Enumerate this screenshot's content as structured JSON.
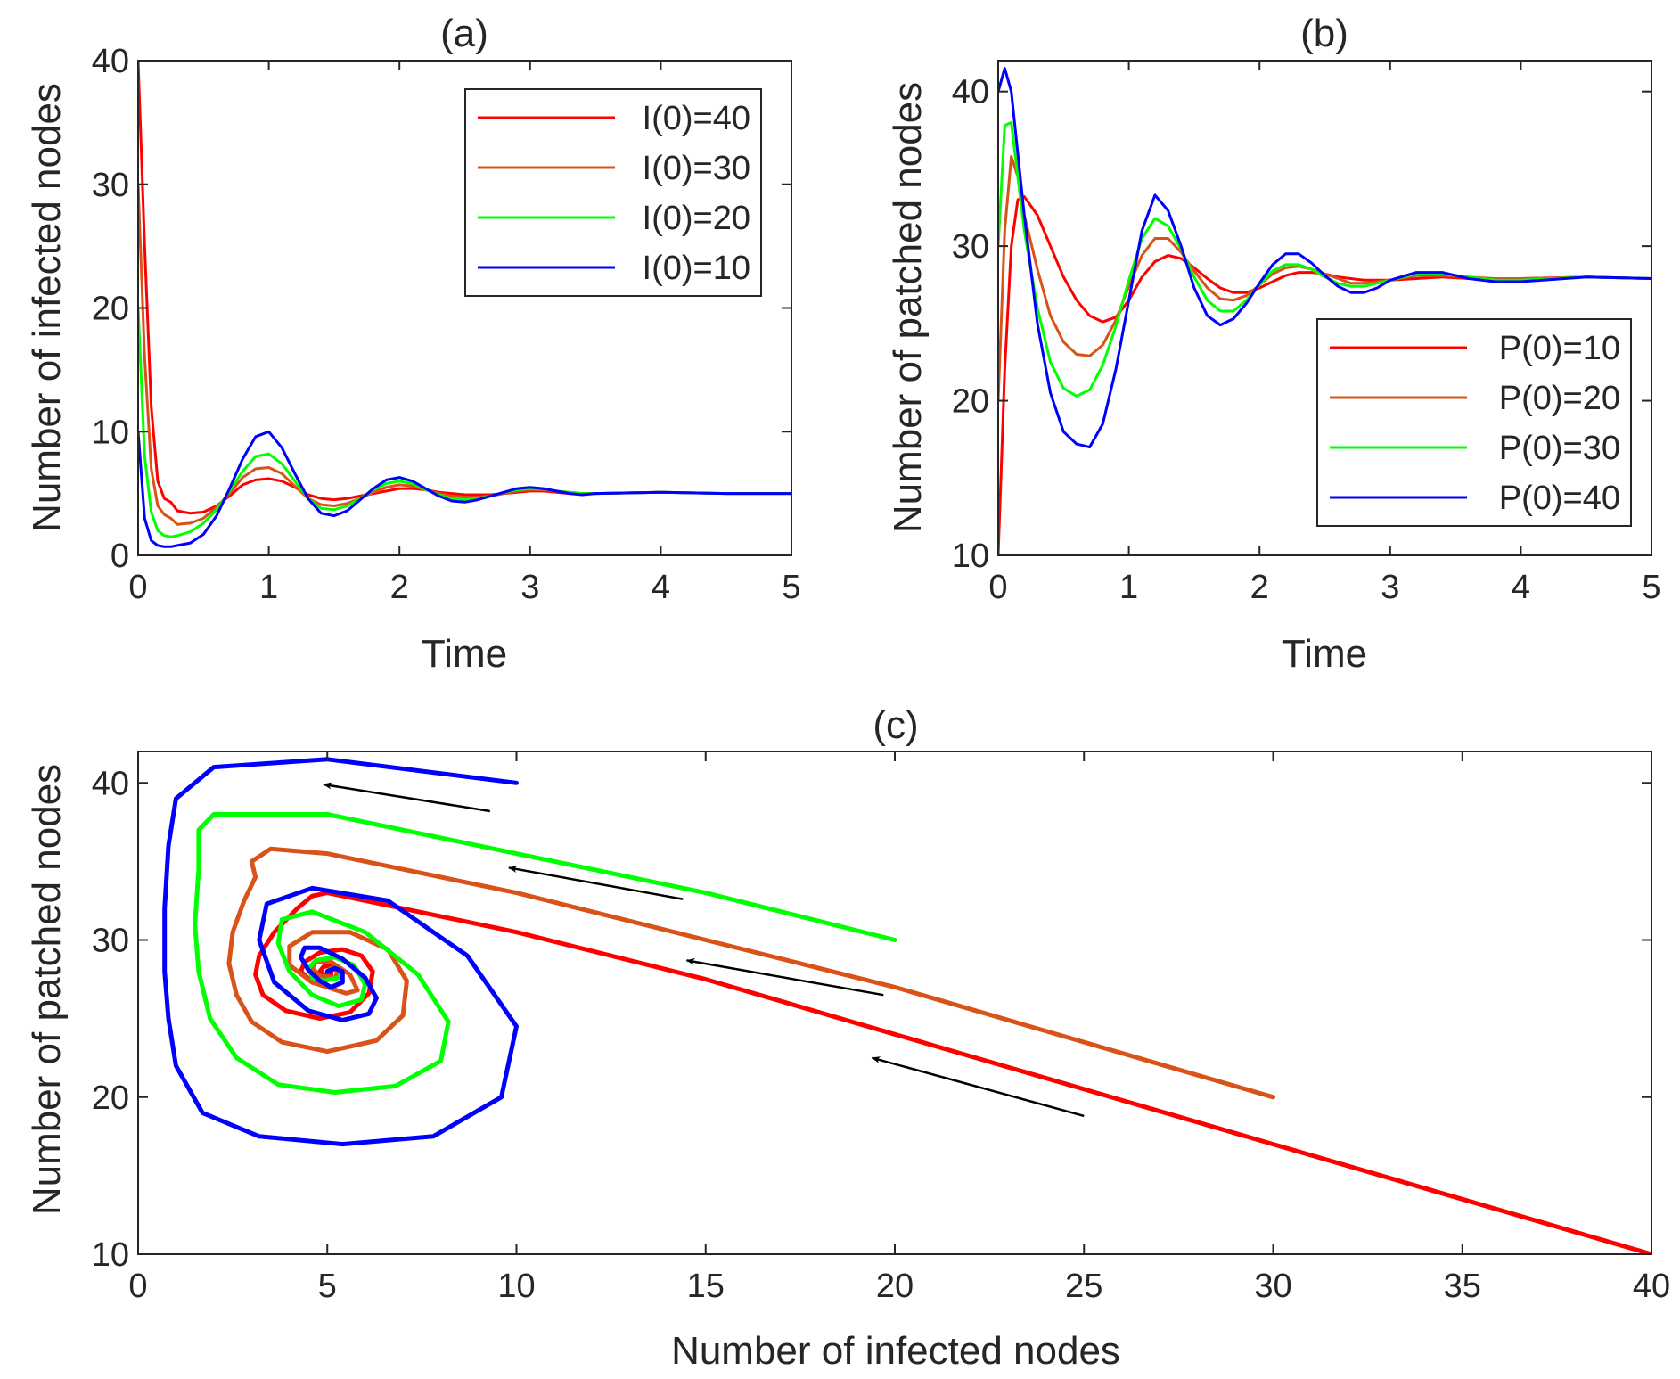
{
  "colors": {
    "c1": "#ff0000",
    "c2": "#d95319",
    "c3": "#00ff00",
    "c4": "#0000ff",
    "arrow": "#000000",
    "axis": "#262626"
  },
  "chart_data": [
    {
      "type": "line",
      "title": "(a)",
      "xlabel": "Time",
      "ylabel": "Number of infected nodes",
      "xlim": [
        0,
        5
      ],
      "ylim": [
        0,
        40
      ],
      "xticks": [
        "0",
        "1",
        "2",
        "3",
        "4",
        "5"
      ],
      "yticks": [
        "0",
        "10",
        "20",
        "30",
        "40"
      ],
      "grid": false,
      "legend_position": "top-right",
      "series": [
        {
          "name": "I(0)=40",
          "x": [
            0,
            0.05,
            0.1,
            0.15,
            0.2,
            0.25,
            0.3,
            0.4,
            0.5,
            0.6,
            0.7,
            0.8,
            0.9,
            1.0,
            1.1,
            1.2,
            1.3,
            1.4,
            1.5,
            1.6,
            1.7,
            1.8,
            1.9,
            2.0,
            2.1,
            2.2,
            2.3,
            2.4,
            2.5,
            2.6,
            2.7,
            2.8,
            2.9,
            3.0,
            3.1,
            3.2,
            3.3,
            3.4,
            3.5,
            4.0,
            4.5,
            5.0
          ],
          "y": [
            40,
            25,
            12,
            6,
            4.6,
            4.3,
            3.6,
            3.4,
            3.5,
            4.0,
            4.8,
            5.7,
            6.1,
            6.2,
            6.0,
            5.5,
            4.9,
            4.6,
            4.5,
            4.6,
            4.8,
            5.0,
            5.2,
            5.4,
            5.4,
            5.3,
            5.1,
            5.0,
            4.9,
            4.9,
            4.9,
            5.0,
            5.1,
            5.2,
            5.2,
            5.1,
            5.0,
            5.0,
            5.0,
            5.1,
            5.0,
            5.0
          ]
        },
        {
          "name": "I(0)=30",
          "x": [
            0,
            0.05,
            0.1,
            0.15,
            0.2,
            0.25,
            0.3,
            0.4,
            0.5,
            0.6,
            0.7,
            0.8,
            0.9,
            1.0,
            1.1,
            1.2,
            1.3,
            1.4,
            1.5,
            1.6,
            1.7,
            1.8,
            1.9,
            2.0,
            2.1,
            2.2,
            2.3,
            2.4,
            2.5,
            2.6,
            2.7,
            2.8,
            2.9,
            3.0,
            3.1,
            3.2,
            3.3,
            3.4,
            3.5,
            4.0,
            4.5,
            5.0
          ],
          "y": [
            30,
            16,
            7,
            4,
            3.3,
            3.0,
            2.5,
            2.6,
            3.0,
            3.9,
            5.0,
            6.3,
            7.0,
            7.1,
            6.6,
            5.6,
            4.6,
            4.1,
            4.0,
            4.2,
            4.6,
            5.1,
            5.5,
            5.7,
            5.6,
            5.3,
            5.0,
            4.8,
            4.7,
            4.7,
            4.8,
            5.0,
            5.2,
            5.3,
            5.3,
            5.2,
            5.1,
            5.0,
            5.0,
            5.1,
            5.0,
            5.0
          ]
        },
        {
          "name": "I(0)=20",
          "x": [
            0,
            0.05,
            0.1,
            0.15,
            0.2,
            0.25,
            0.3,
            0.4,
            0.5,
            0.6,
            0.7,
            0.8,
            0.9,
            1.0,
            1.1,
            1.2,
            1.3,
            1.4,
            1.5,
            1.6,
            1.7,
            1.8,
            1.9,
            2.0,
            2.1,
            2.2,
            2.3,
            2.4,
            2.5,
            2.6,
            2.7,
            2.8,
            2.9,
            3.0,
            3.1,
            3.2,
            3.3,
            3.4,
            3.5,
            4.0,
            4.5,
            5.0
          ],
          "y": [
            20,
            8,
            3.5,
            2.0,
            1.6,
            1.5,
            1.6,
            1.9,
            2.6,
            3.7,
            5.2,
            6.8,
            8.0,
            8.2,
            7.4,
            6.0,
            4.6,
            3.8,
            3.7,
            4.0,
            4.6,
            5.3,
            5.8,
            6.0,
            5.8,
            5.3,
            4.9,
            4.6,
            4.5,
            4.6,
            4.8,
            5.1,
            5.3,
            5.4,
            5.4,
            5.2,
            5.1,
            5.0,
            5.0,
            5.1,
            5.0,
            5.0
          ]
        },
        {
          "name": "I(0)=10",
          "x": [
            0,
            0.05,
            0.1,
            0.15,
            0.2,
            0.25,
            0.3,
            0.4,
            0.5,
            0.6,
            0.7,
            0.8,
            0.9,
            1.0,
            1.1,
            1.2,
            1.3,
            1.4,
            1.5,
            1.6,
            1.7,
            1.8,
            1.9,
            2.0,
            2.1,
            2.2,
            2.3,
            2.4,
            2.5,
            2.6,
            2.7,
            2.8,
            2.9,
            3.0,
            3.1,
            3.2,
            3.3,
            3.4,
            3.5,
            4.0,
            4.5,
            5.0
          ],
          "y": [
            10,
            3.0,
            1.2,
            0.8,
            0.7,
            0.7,
            0.8,
            1.0,
            1.7,
            3.2,
            5.4,
            7.8,
            9.6,
            10.0,
            8.7,
            6.6,
            4.6,
            3.4,
            3.2,
            3.6,
            4.5,
            5.4,
            6.1,
            6.3,
            6.0,
            5.4,
            4.8,
            4.4,
            4.3,
            4.5,
            4.8,
            5.1,
            5.4,
            5.5,
            5.4,
            5.2,
            5.0,
            4.9,
            5.0,
            5.1,
            5.0,
            5.0
          ]
        }
      ]
    },
    {
      "type": "line",
      "title": "(b)",
      "xlabel": "Time",
      "ylabel": "Number of patched nodes",
      "xlim": [
        0,
        5
      ],
      "ylim": [
        10,
        42
      ],
      "xticks": [
        "0",
        "1",
        "2",
        "3",
        "4",
        "5"
      ],
      "yticks": [
        "10",
        "20",
        "30",
        "40"
      ],
      "grid": false,
      "legend_position": "center-right",
      "series": [
        {
          "name": "P(0)=10",
          "x": [
            0,
            0.05,
            0.1,
            0.15,
            0.2,
            0.3,
            0.4,
            0.5,
            0.6,
            0.7,
            0.8,
            0.9,
            1.0,
            1.1,
            1.2,
            1.3,
            1.4,
            1.5,
            1.6,
            1.7,
            1.8,
            1.9,
            2.0,
            2.1,
            2.2,
            2.3,
            2.4,
            2.5,
            2.6,
            2.7,
            2.8,
            2.9,
            3.0,
            3.2,
            3.4,
            3.6,
            3.8,
            4.0,
            4.5,
            5.0
          ],
          "y": [
            10,
            22,
            30,
            33,
            33.2,
            32.0,
            30.0,
            28.0,
            26.5,
            25.5,
            25.1,
            25.4,
            26.5,
            28.0,
            29.0,
            29.4,
            29.2,
            28.6,
            27.9,
            27.3,
            27.0,
            27.0,
            27.3,
            27.7,
            28.1,
            28.3,
            28.3,
            28.2,
            28.0,
            27.9,
            27.8,
            27.8,
            27.8,
            27.9,
            28.0,
            27.9,
            27.9,
            27.9,
            28.0,
            27.9
          ]
        },
        {
          "name": "P(0)=20",
          "x": [
            0,
            0.05,
            0.1,
            0.15,
            0.2,
            0.3,
            0.4,
            0.5,
            0.6,
            0.7,
            0.8,
            0.9,
            1.0,
            1.1,
            1.2,
            1.3,
            1.4,
            1.5,
            1.6,
            1.7,
            1.8,
            1.9,
            2.0,
            2.1,
            2.2,
            2.3,
            2.4,
            2.5,
            2.6,
            2.7,
            2.8,
            2.9,
            3.0,
            3.2,
            3.4,
            3.6,
            3.8,
            4.0,
            4.5,
            5.0
          ],
          "y": [
            20,
            31,
            35.8,
            34.5,
            32.0,
            28.5,
            25.5,
            23.8,
            23.0,
            22.9,
            23.6,
            25.2,
            27.4,
            29.4,
            30.5,
            30.5,
            29.6,
            28.4,
            27.3,
            26.6,
            26.5,
            26.8,
            27.5,
            28.2,
            28.6,
            28.7,
            28.5,
            28.2,
            27.9,
            27.6,
            27.6,
            27.7,
            27.8,
            28.1,
            28.1,
            28.0,
            27.9,
            27.9,
            28.0,
            27.9
          ]
        },
        {
          "name": "P(0)=30",
          "x": [
            0,
            0.05,
            0.1,
            0.15,
            0.2,
            0.3,
            0.4,
            0.5,
            0.6,
            0.7,
            0.8,
            0.9,
            1.0,
            1.1,
            1.2,
            1.3,
            1.4,
            1.5,
            1.6,
            1.7,
            1.8,
            1.9,
            2.0,
            2.1,
            2.2,
            2.3,
            2.4,
            2.5,
            2.6,
            2.7,
            2.8,
            2.9,
            3.0,
            3.2,
            3.4,
            3.6,
            3.8,
            4.0,
            4.5,
            5.0
          ],
          "y": [
            30,
            37.8,
            38.0,
            34.5,
            31.0,
            26.0,
            22.5,
            20.8,
            20.3,
            20.7,
            22.3,
            24.8,
            27.8,
            30.5,
            31.8,
            31.3,
            29.8,
            28.0,
            26.5,
            25.8,
            25.8,
            26.5,
            27.5,
            28.4,
            28.8,
            28.8,
            28.5,
            28.0,
            27.6,
            27.4,
            27.4,
            27.6,
            27.8,
            28.2,
            28.2,
            28.0,
            27.8,
            27.8,
            28.0,
            27.9
          ]
        },
        {
          "name": "P(0)=40",
          "x": [
            0,
            0.05,
            0.1,
            0.15,
            0.2,
            0.3,
            0.4,
            0.5,
            0.6,
            0.7,
            0.8,
            0.9,
            1.0,
            1.1,
            1.2,
            1.3,
            1.4,
            1.5,
            1.6,
            1.7,
            1.8,
            1.9,
            2.0,
            2.1,
            2.2,
            2.3,
            2.4,
            2.5,
            2.6,
            2.7,
            2.8,
            2.9,
            3.0,
            3.2,
            3.4,
            3.6,
            3.8,
            4.0,
            4.5,
            5.0
          ],
          "y": [
            40,
            41.5,
            40.0,
            36.0,
            32.0,
            25.0,
            20.5,
            18.0,
            17.2,
            17.0,
            18.5,
            22.0,
            26.5,
            31.0,
            33.3,
            32.3,
            30.0,
            27.3,
            25.5,
            24.9,
            25.3,
            26.3,
            27.6,
            28.8,
            29.5,
            29.5,
            28.9,
            28.1,
            27.4,
            27.0,
            27.0,
            27.3,
            27.8,
            28.3,
            28.3,
            27.9,
            27.7,
            27.7,
            28.0,
            27.9
          ]
        }
      ]
    },
    {
      "type": "line",
      "title": "(c)",
      "xlabel": "Number of infected nodes",
      "ylabel": "Number of patched nodes",
      "xlim": [
        0,
        40
      ],
      "ylim": [
        10,
        42
      ],
      "xticks": [
        "0",
        "5",
        "10",
        "15",
        "20",
        "25",
        "30",
        "35",
        "40"
      ],
      "yticks": [
        "10",
        "20",
        "30",
        "40"
      ],
      "grid": false,
      "series": [
        {
          "x": [
            40,
            35,
            30,
            25,
            20,
            15,
            10,
            5,
            4.6,
            4.2,
            3.6,
            3.2,
            3.1,
            3.3,
            3.9,
            4.8,
            5.6,
            6.1,
            6.2,
            5.9,
            5.4,
            4.8,
            4.4,
            4.3,
            4.6,
            5.1,
            5.4,
            5.4,
            5.1,
            4.9,
            4.8,
            4.9,
            5.1,
            5.1,
            5.0
          ],
          "y": [
            10,
            13.5,
            17,
            20.5,
            24,
            27.5,
            30.5,
            33,
            32.8,
            32.0,
            30.5,
            29.0,
            27.8,
            26.5,
            25.5,
            25.0,
            25.4,
            26.6,
            28.0,
            29.0,
            29.4,
            29.2,
            28.6,
            28.0,
            27.3,
            27.0,
            27.3,
            28.0,
            28.4,
            28.3,
            28.0,
            27.8,
            27.8,
            28.0,
            28.0
          ]
        },
        {
          "x": [
            30,
            25,
            20,
            15,
            10,
            5,
            3.5,
            3.0,
            3.1,
            2.8,
            2.5,
            2.4,
            2.6,
            3.0,
            3.8,
            5.0,
            6.3,
            7.0,
            7.1,
            6.6,
            5.6,
            4.6,
            4.0,
            4.0,
            4.6,
            5.5,
            5.8,
            5.6,
            5.1,
            4.7,
            4.6,
            4.8,
            5.2,
            5.3,
            5.1,
            5.0
          ],
          "y": [
            20,
            23.5,
            27,
            30,
            33,
            35.5,
            35.8,
            35.0,
            34.0,
            32.5,
            30.5,
            28.5,
            26.5,
            24.8,
            23.5,
            22.9,
            23.6,
            25.2,
            27.4,
            29.4,
            30.5,
            30.5,
            29.6,
            28.4,
            27.3,
            26.6,
            26.8,
            27.8,
            28.6,
            28.6,
            28.2,
            27.7,
            27.6,
            28.0,
            28.2,
            28.0
          ]
        },
        {
          "x": [
            20,
            15,
            10,
            5,
            2.0,
            1.6,
            1.6,
            1.5,
            1.6,
            1.9,
            2.6,
            3.7,
            5.2,
            6.8,
            8.0,
            8.2,
            7.4,
            6.0,
            4.6,
            3.8,
            3.7,
            4.0,
            4.6,
            5.3,
            5.9,
            6.0,
            5.7,
            5.2,
            4.7,
            4.5,
            4.6,
            4.9,
            5.3,
            5.4,
            5.2,
            5.0
          ],
          "y": [
            30,
            33,
            35.5,
            38,
            38,
            37.0,
            34.5,
            31.0,
            28.0,
            25.0,
            22.5,
            20.8,
            20.3,
            20.7,
            22.3,
            24.8,
            27.8,
            30.5,
            31.8,
            31.3,
            29.8,
            28.0,
            26.5,
            25.8,
            26.2,
            27.2,
            28.4,
            28.9,
            28.7,
            28.2,
            27.6,
            27.4,
            27.6,
            28.0,
            28.2,
            28.0
          ]
        },
        {
          "x": [
            10,
            5,
            2.0,
            1.0,
            0.8,
            0.7,
            0.7,
            0.8,
            1.0,
            1.7,
            3.2,
            5.4,
            7.8,
            9.6,
            10.0,
            8.7,
            6.6,
            4.6,
            3.4,
            3.2,
            3.6,
            4.5,
            5.4,
            6.1,
            6.3,
            6.0,
            5.4,
            4.8,
            4.4,
            4.3,
            4.5,
            4.8,
            5.1,
            5.4,
            5.4,
            5.2,
            5.0
          ],
          "y": [
            40,
            41.5,
            41.0,
            39.0,
            36.0,
            32.0,
            28.0,
            25.0,
            22.0,
            19.0,
            17.5,
            17.0,
            17.5,
            20.0,
            24.5,
            29.0,
            32.5,
            33.3,
            32.3,
            30.0,
            27.3,
            25.5,
            24.9,
            25.3,
            26.3,
            27.6,
            28.8,
            29.5,
            29.5,
            28.9,
            28.1,
            27.4,
            27.0,
            27.3,
            28.0,
            28.2,
            28.0
          ]
        }
      ],
      "annotations": [
        {
          "type": "arrow",
          "from": [
            9.3,
            38.2
          ],
          "to": [
            4.9,
            39.9
          ]
        },
        {
          "type": "arrow",
          "from": [
            14.4,
            32.6
          ],
          "to": [
            9.8,
            34.6
          ]
        },
        {
          "type": "arrow",
          "from": [
            19.7,
            26.5
          ],
          "to": [
            14.5,
            28.7
          ]
        },
        {
          "type": "arrow",
          "from": [
            25.0,
            18.8
          ],
          "to": [
            19.4,
            22.5
          ]
        }
      ]
    }
  ]
}
